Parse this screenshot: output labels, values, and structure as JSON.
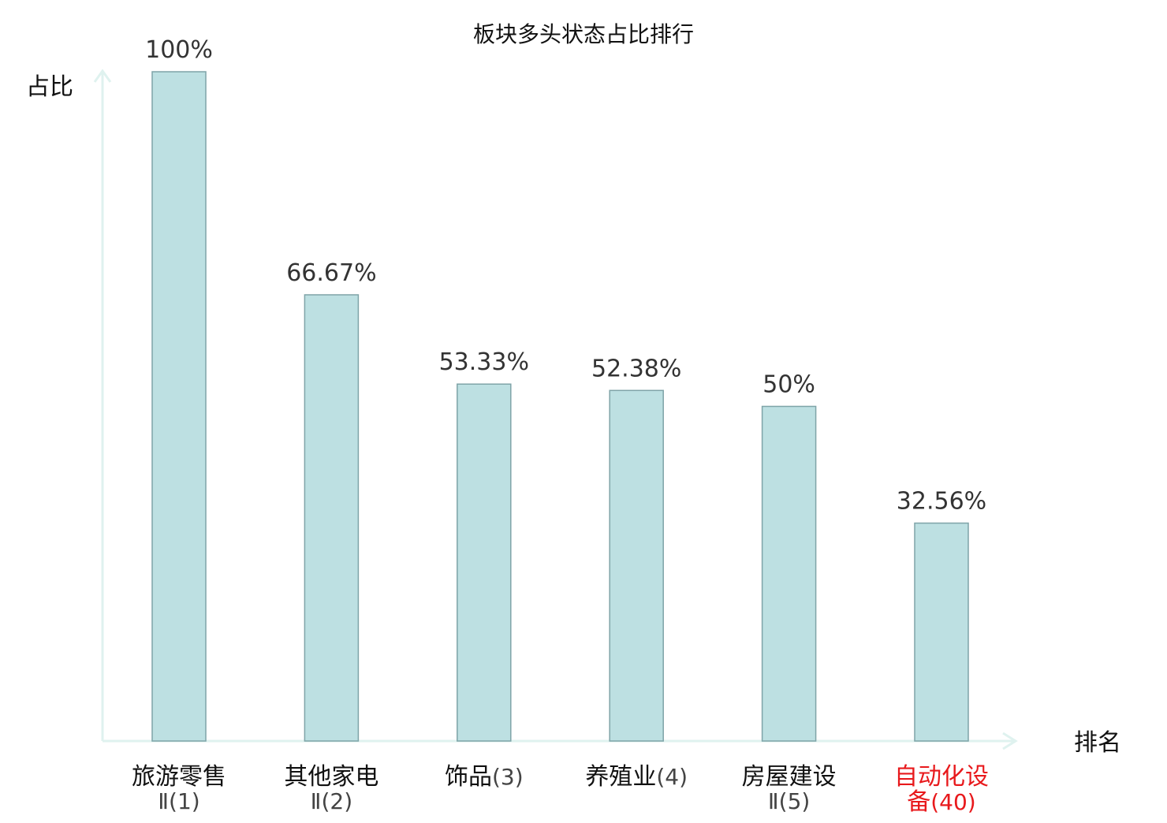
{
  "chart_data": {
    "type": "bar",
    "title": "板块多头状态占比排行",
    "ylabel": "占比",
    "xlabel": "排名",
    "ylim": [
      0,
      100
    ],
    "grid": false,
    "categories": [
      {
        "name": "旅游零售",
        "rank": "Ⅱ(1)",
        "highlight": false
      },
      {
        "name": "其他家电",
        "rank": "Ⅱ(2)",
        "highlight": false
      },
      {
        "name": "饰品",
        "rank": "(3)",
        "highlight": false
      },
      {
        "name": "养殖业",
        "rank": "(4)",
        "highlight": false
      },
      {
        "name": "房屋建设",
        "rank": "Ⅱ(5)",
        "highlight": false
      },
      {
        "name": "自动化设备",
        "rank": "(40)",
        "highlight": true
      }
    ],
    "values": [
      100,
      66.67,
      53.33,
      52.38,
      50,
      32.56
    ],
    "value_labels": [
      "100%",
      "66.67%",
      "53.33%",
      "52.38%",
      "50%",
      "32.56%"
    ],
    "colors": {
      "bar_fill": "#bde0e2",
      "bar_stroke": "#7fa4a8",
      "axis": "#dff2ef",
      "text": "#111111",
      "value_text": "#333333",
      "highlight": "#e8191c"
    }
  }
}
